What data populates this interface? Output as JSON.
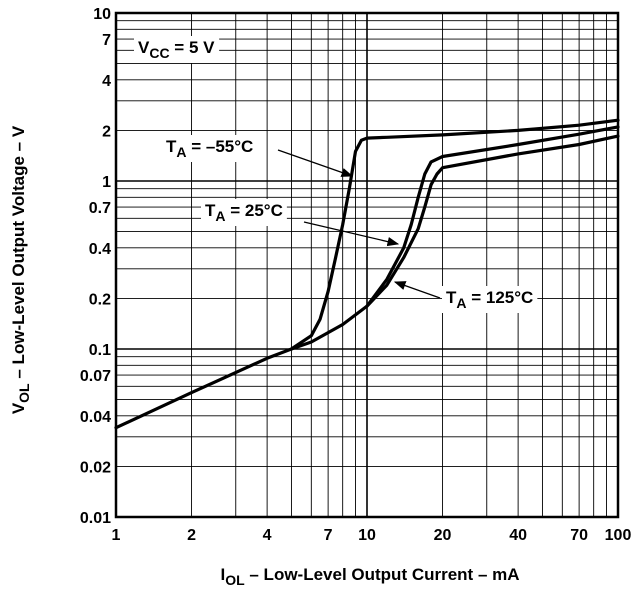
{
  "chart_data": {
    "type": "line",
    "x_scale": "log",
    "y_scale": "log",
    "xlim": [
      1,
      100
    ],
    "ylim": [
      0.01,
      10
    ],
    "grid": true,
    "x_ticks": [
      1,
      2,
      4,
      7,
      10,
      20,
      40,
      70,
      100
    ],
    "x_tick_labels": [
      "1",
      "2",
      "4",
      "7",
      "10",
      "20",
      "40",
      "70",
      "100"
    ],
    "y_ticks": [
      0.01,
      0.02,
      0.04,
      0.07,
      0.1,
      0.2,
      0.4,
      0.7,
      1,
      2,
      4,
      7,
      10
    ],
    "y_tick_labels": [
      "0.01",
      "0.02",
      "0.04",
      "0.07",
      "0.1",
      "0.2",
      "0.4",
      "0.7",
      "1",
      "2",
      "4",
      "7",
      "10"
    ],
    "xlabel": {
      "main": "I",
      "sub": "OL",
      "rest": " – Low-Level Output Current – mA"
    },
    "ylabel": {
      "main": "V",
      "sub": "OL",
      "rest": "  – Low-Level Output Voltage – V"
    },
    "conditions": {
      "main": "V",
      "sub": "CC",
      "rest": " = 5 V"
    },
    "series": [
      {
        "name": {
          "main": "T",
          "sub": "A",
          "rest": " = –55°C"
        },
        "x": [
          1,
          2,
          4,
          5,
          6,
          6.5,
          7,
          7.5,
          8,
          8.5,
          9,
          9.5,
          10,
          12,
          20,
          40,
          70,
          100
        ],
        "y": [
          0.034,
          0.055,
          0.088,
          0.1,
          0.12,
          0.15,
          0.22,
          0.35,
          0.55,
          0.9,
          1.5,
          1.75,
          1.8,
          1.82,
          1.88,
          2.0,
          2.15,
          2.3
        ]
      },
      {
        "name": {
          "main": "T",
          "sub": "A",
          "rest": " = 25°C"
        },
        "x": [
          5,
          6,
          8,
          10,
          12,
          14,
          15,
          16,
          17,
          18,
          20,
          40,
          70,
          100
        ],
        "y": [
          0.1,
          0.11,
          0.14,
          0.18,
          0.26,
          0.4,
          0.55,
          0.8,
          1.1,
          1.3,
          1.4,
          1.65,
          1.9,
          2.1
        ]
      },
      {
        "name": {
          "main": "T",
          "sub": "A",
          "rest": " = 125°C"
        },
        "x": [
          10,
          12,
          14,
          16,
          17,
          18,
          19,
          20,
          40,
          70,
          100
        ],
        "y": [
          0.18,
          0.24,
          0.35,
          0.52,
          0.7,
          0.95,
          1.1,
          1.2,
          1.45,
          1.65,
          1.85
        ]
      }
    ]
  }
}
